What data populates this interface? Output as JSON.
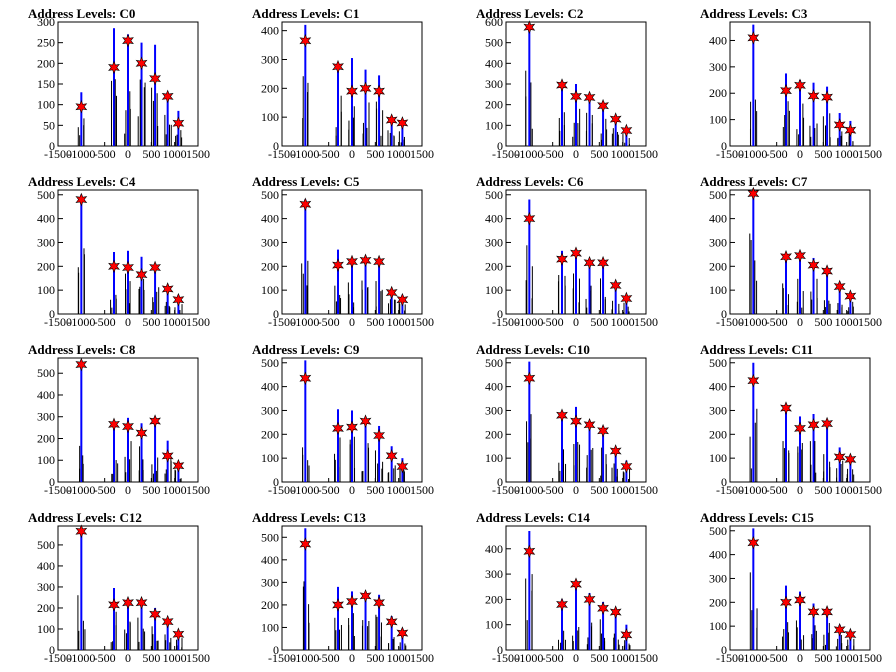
{
  "colors": {
    "histogram": "#0000ff",
    "marker": "#ff0000",
    "marker_outline": "#000000",
    "axis": "#000000"
  },
  "x_ticks": [
    -1500,
    -1000,
    -500,
    0,
    500,
    1000,
    1500
  ],
  "x_tick_labels": [
    "-1500",
    "-1000",
    "-500",
    "0",
    "500",
    "1000",
    "1500"
  ],
  "marker_icon": "red-star-marker",
  "chart_data": [
    {
      "type": "bar",
      "title": "Address Levels: C0",
      "xlim": [
        -1500,
        1500
      ],
      "ylim": [
        0,
        300
      ],
      "yticks": [
        0,
        50,
        100,
        150,
        200,
        250,
        300
      ],
      "peaks": [
        {
          "x": -1000,
          "h": 130
        },
        {
          "x": -300,
          "h": 285
        },
        {
          "x": 0,
          "h": 270
        },
        {
          "x": 290,
          "h": 250
        },
        {
          "x": 580,
          "h": 245
        },
        {
          "x": 850,
          "h": 125
        },
        {
          "x": 1080,
          "h": 85
        }
      ],
      "markers": [
        {
          "x": -1000,
          "y": 95
        },
        {
          "x": -300,
          "y": 190
        },
        {
          "x": 0,
          "y": 255
        },
        {
          "x": 290,
          "y": 200
        },
        {
          "x": 580,
          "y": 163
        },
        {
          "x": 850,
          "y": 120
        },
        {
          "x": 1080,
          "y": 55
        }
      ]
    },
    {
      "type": "bar",
      "title": "Address Levels: C1",
      "xlim": [
        -1500,
        1500
      ],
      "ylim": [
        0,
        430
      ],
      "yticks": [
        0,
        100,
        200,
        300,
        400
      ],
      "peaks": [
        {
          "x": -1000,
          "h": 420
        },
        {
          "x": -300,
          "h": 290
        },
        {
          "x": 0,
          "h": 305
        },
        {
          "x": 290,
          "h": 265
        },
        {
          "x": 580,
          "h": 245
        },
        {
          "x": 850,
          "h": 100
        },
        {
          "x": 1080,
          "h": 85
        }
      ],
      "markers": [
        {
          "x": -1000,
          "y": 365
        },
        {
          "x": -300,
          "y": 275
        },
        {
          "x": 0,
          "y": 190
        },
        {
          "x": 290,
          "y": 200
        },
        {
          "x": 580,
          "y": 190
        },
        {
          "x": 850,
          "y": 90
        },
        {
          "x": 1080,
          "y": 80
        }
      ]
    },
    {
      "type": "bar",
      "title": "Address Levels: C2",
      "xlim": [
        -1500,
        1500
      ],
      "ylim": [
        0,
        600
      ],
      "yticks": [
        0,
        100,
        200,
        300,
        400,
        500,
        600
      ],
      "peaks": [
        {
          "x": -1000,
          "h": 580
        },
        {
          "x": -300,
          "h": 300
        },
        {
          "x": 0,
          "h": 300
        },
        {
          "x": 290,
          "h": 250
        },
        {
          "x": 580,
          "h": 210
        },
        {
          "x": 850,
          "h": 140
        },
        {
          "x": 1080,
          "h": 90
        }
      ],
      "markers": [
        {
          "x": -1000,
          "y": 575
        },
        {
          "x": -300,
          "y": 295
        },
        {
          "x": 0,
          "y": 240
        },
        {
          "x": 290,
          "y": 235
        },
        {
          "x": 580,
          "y": 195
        },
        {
          "x": 850,
          "y": 130
        },
        {
          "x": 1080,
          "y": 75
        }
      ]
    },
    {
      "type": "bar",
      "title": "Address Levels: C3",
      "xlim": [
        -1500,
        1500
      ],
      "ylim": [
        0,
        470
      ],
      "yticks": [
        0,
        100,
        200,
        300,
        400
      ],
      "peaks": [
        {
          "x": -1000,
          "h": 460
        },
        {
          "x": -300,
          "h": 275
        },
        {
          "x": 0,
          "h": 250
        },
        {
          "x": 290,
          "h": 240
        },
        {
          "x": 580,
          "h": 225
        },
        {
          "x": 850,
          "h": 125
        },
        {
          "x": 1080,
          "h": 95
        }
      ],
      "markers": [
        {
          "x": -1000,
          "y": 410
        },
        {
          "x": -300,
          "y": 210
        },
        {
          "x": 0,
          "y": 230
        },
        {
          "x": 290,
          "y": 190
        },
        {
          "x": 580,
          "y": 185
        },
        {
          "x": 850,
          "y": 80
        },
        {
          "x": 1080,
          "y": 60
        }
      ]
    },
    {
      "type": "bar",
      "title": "Address Levels: C4",
      "xlim": [
        -1500,
        1500
      ],
      "ylim": [
        0,
        520
      ],
      "yticks": [
        0,
        100,
        200,
        300,
        400,
        500
      ],
      "peaks": [
        {
          "x": -1000,
          "h": 500
        },
        {
          "x": -300,
          "h": 260
        },
        {
          "x": 0,
          "h": 265
        },
        {
          "x": 290,
          "h": 240
        },
        {
          "x": 580,
          "h": 200
        },
        {
          "x": 850,
          "h": 115
        },
        {
          "x": 1080,
          "h": 80
        }
      ],
      "markers": [
        {
          "x": -1000,
          "y": 480
        },
        {
          "x": -300,
          "y": 200
        },
        {
          "x": 0,
          "y": 195
        },
        {
          "x": 290,
          "y": 165
        },
        {
          "x": 580,
          "y": 195
        },
        {
          "x": 850,
          "y": 105
        },
        {
          "x": 1080,
          "y": 60
        }
      ]
    },
    {
      "type": "bar",
      "title": "Address Levels: C5",
      "xlim": [
        -1500,
        1500
      ],
      "ylim": [
        0,
        520
      ],
      "yticks": [
        0,
        100,
        200,
        300,
        400,
        500
      ],
      "peaks": [
        {
          "x": -1000,
          "h": 480
        },
        {
          "x": -300,
          "h": 270
        },
        {
          "x": 0,
          "h": 235
        },
        {
          "x": 290,
          "h": 240
        },
        {
          "x": 580,
          "h": 230
        },
        {
          "x": 850,
          "h": 100
        },
        {
          "x": 1080,
          "h": 80
        }
      ],
      "markers": [
        {
          "x": -1000,
          "y": 460
        },
        {
          "x": -300,
          "y": 205
        },
        {
          "x": 0,
          "y": 220
        },
        {
          "x": 290,
          "y": 225
        },
        {
          "x": 580,
          "y": 220
        },
        {
          "x": 850,
          "y": 90
        },
        {
          "x": 1080,
          "y": 60
        }
      ]
    },
    {
      "type": "bar",
      "title": "Address Levels: C6",
      "xlim": [
        -1500,
        1500
      ],
      "ylim": [
        0,
        520
      ],
      "yticks": [
        0,
        100,
        200,
        300,
        400,
        500
      ],
      "peaks": [
        {
          "x": -1000,
          "h": 480
        },
        {
          "x": -300,
          "h": 265
        },
        {
          "x": 0,
          "h": 270
        },
        {
          "x": 290,
          "h": 230
        },
        {
          "x": 580,
          "h": 230
        },
        {
          "x": 850,
          "h": 130
        },
        {
          "x": 1080,
          "h": 80
        }
      ],
      "markers": [
        {
          "x": -1000,
          "y": 400
        },
        {
          "x": -300,
          "y": 230
        },
        {
          "x": 0,
          "y": 255
        },
        {
          "x": 290,
          "y": 215
        },
        {
          "x": 580,
          "y": 215
        },
        {
          "x": 850,
          "y": 120
        },
        {
          "x": 1080,
          "y": 65
        }
      ]
    },
    {
      "type": "bar",
      "title": "Address Levels: C7",
      "xlim": [
        -1500,
        1500
      ],
      "ylim": [
        0,
        520
      ],
      "yticks": [
        0,
        100,
        200,
        300,
        400,
        500
      ],
      "peaks": [
        {
          "x": -1000,
          "h": 520
        },
        {
          "x": -300,
          "h": 255
        },
        {
          "x": 0,
          "h": 250
        },
        {
          "x": 290,
          "h": 235
        },
        {
          "x": 580,
          "h": 195
        },
        {
          "x": 850,
          "h": 125
        },
        {
          "x": 1080,
          "h": 80
        }
      ],
      "markers": [
        {
          "x": -1000,
          "y": 505
        },
        {
          "x": -300,
          "y": 240
        },
        {
          "x": 0,
          "y": 245
        },
        {
          "x": 290,
          "y": 205
        },
        {
          "x": 580,
          "y": 180
        },
        {
          "x": 850,
          "y": 115
        },
        {
          "x": 1080,
          "y": 75
        }
      ]
    },
    {
      "type": "bar",
      "title": "Address Levels: C8",
      "xlim": [
        -1500,
        1500
      ],
      "ylim": [
        0,
        570
      ],
      "yticks": [
        0,
        100,
        200,
        300,
        400,
        500
      ],
      "peaks": [
        {
          "x": -1000,
          "h": 560
        },
        {
          "x": -300,
          "h": 275
        },
        {
          "x": 0,
          "h": 295
        },
        {
          "x": 290,
          "h": 270
        },
        {
          "x": 580,
          "h": 285
        },
        {
          "x": 850,
          "h": 190
        },
        {
          "x": 1080,
          "h": 90
        }
      ],
      "markers": [
        {
          "x": -1000,
          "y": 540
        },
        {
          "x": -300,
          "y": 265
        },
        {
          "x": 0,
          "y": 255
        },
        {
          "x": 290,
          "y": 225
        },
        {
          "x": 580,
          "y": 280
        },
        {
          "x": 850,
          "y": 120
        },
        {
          "x": 1080,
          "y": 75
        }
      ]
    },
    {
      "type": "bar",
      "title": "Address Levels: C9",
      "xlim": [
        -1500,
        1500
      ],
      "ylim": [
        0,
        520
      ],
      "yticks": [
        0,
        100,
        200,
        300,
        400,
        500
      ],
      "peaks": [
        {
          "x": -1000,
          "h": 510
        },
        {
          "x": -300,
          "h": 305
        },
        {
          "x": 0,
          "h": 300
        },
        {
          "x": 290,
          "h": 265
        },
        {
          "x": 580,
          "h": 235
        },
        {
          "x": 850,
          "h": 150
        },
        {
          "x": 1080,
          "h": 100
        }
      ],
      "markers": [
        {
          "x": -1000,
          "y": 435
        },
        {
          "x": -300,
          "y": 225
        },
        {
          "x": 0,
          "y": 230
        },
        {
          "x": 290,
          "y": 255
        },
        {
          "x": 580,
          "y": 195
        },
        {
          "x": 850,
          "y": 110
        },
        {
          "x": 1080,
          "y": 65
        }
      ]
    },
    {
      "type": "bar",
      "title": "Address Levels: C10",
      "xlim": [
        -1500,
        1500
      ],
      "ylim": [
        0,
        520
      ],
      "yticks": [
        0,
        100,
        200,
        300,
        400,
        500
      ],
      "peaks": [
        {
          "x": -1000,
          "h": 505
        },
        {
          "x": -300,
          "h": 295
        },
        {
          "x": 0,
          "h": 315
        },
        {
          "x": 290,
          "h": 255
        },
        {
          "x": 580,
          "h": 235
        },
        {
          "x": 850,
          "h": 145
        },
        {
          "x": 1080,
          "h": 90
        }
      ],
      "markers": [
        {
          "x": -1000,
          "y": 435
        },
        {
          "x": -300,
          "y": 280
        },
        {
          "x": 0,
          "y": 255
        },
        {
          "x": 290,
          "y": 240
        },
        {
          "x": 580,
          "y": 215
        },
        {
          "x": 850,
          "y": 130
        },
        {
          "x": 1080,
          "y": 65
        }
      ]
    },
    {
      "type": "bar",
      "title": "Address Levels: C11",
      "xlim": [
        -1500,
        1500
      ],
      "ylim": [
        0,
        520
      ],
      "yticks": [
        0,
        100,
        200,
        300,
        400,
        500
      ],
      "peaks": [
        {
          "x": -1000,
          "h": 500
        },
        {
          "x": -300,
          "h": 320
        },
        {
          "x": 0,
          "h": 275
        },
        {
          "x": 290,
          "h": 285
        },
        {
          "x": 580,
          "h": 260
        },
        {
          "x": 850,
          "h": 145
        },
        {
          "x": 1080,
          "h": 100
        }
      ],
      "markers": [
        {
          "x": -1000,
          "y": 425
        },
        {
          "x": -300,
          "y": 310
        },
        {
          "x": 0,
          "y": 225
        },
        {
          "x": 290,
          "y": 240
        },
        {
          "x": 580,
          "y": 245
        },
        {
          "x": 850,
          "y": 105
        },
        {
          "x": 1080,
          "y": 95
        }
      ]
    },
    {
      "type": "bar",
      "title": "Address Levels: C12",
      "xlim": [
        -1500,
        1500
      ],
      "ylim": [
        0,
        590
      ],
      "yticks": [
        0,
        100,
        200,
        300,
        400,
        500
      ],
      "peaks": [
        {
          "x": -1000,
          "h": 580
        },
        {
          "x": -300,
          "h": 295
        },
        {
          "x": 0,
          "h": 245
        },
        {
          "x": 290,
          "h": 240
        },
        {
          "x": 580,
          "h": 200
        },
        {
          "x": 850,
          "h": 145
        },
        {
          "x": 1080,
          "h": 90
        }
      ],
      "markers": [
        {
          "x": -1000,
          "y": 565
        },
        {
          "x": -300,
          "y": 215
        },
        {
          "x": 0,
          "y": 225
        },
        {
          "x": 290,
          "y": 225
        },
        {
          "x": 580,
          "y": 170
        },
        {
          "x": 850,
          "y": 135
        },
        {
          "x": 1080,
          "y": 75
        }
      ]
    },
    {
      "type": "bar",
      "title": "Address Levels: C13",
      "xlim": [
        -1500,
        1500
      ],
      "ylim": [
        0,
        550
      ],
      "yticks": [
        0,
        100,
        200,
        300,
        400,
        500
      ],
      "peaks": [
        {
          "x": -1000,
          "h": 540
        },
        {
          "x": -300,
          "h": 280
        },
        {
          "x": 0,
          "h": 260
        },
        {
          "x": 290,
          "h": 255
        },
        {
          "x": 580,
          "h": 245
        },
        {
          "x": 850,
          "h": 150
        },
        {
          "x": 1080,
          "h": 95
        }
      ],
      "markers": [
        {
          "x": -1000,
          "y": 470
        },
        {
          "x": -300,
          "y": 200
        },
        {
          "x": 0,
          "y": 215
        },
        {
          "x": 290,
          "y": 240
        },
        {
          "x": 580,
          "y": 210
        },
        {
          "x": 850,
          "y": 125
        },
        {
          "x": 1080,
          "y": 75
        }
      ]
    },
    {
      "type": "bar",
      "title": "Address Levels: C14",
      "xlim": [
        -1500,
        1500
      ],
      "ylim": [
        0,
        490
      ],
      "yticks": [
        0,
        100,
        200,
        300,
        400
      ],
      "peaks": [
        {
          "x": -1000,
          "h": 470
        },
        {
          "x": -300,
          "h": 200
        },
        {
          "x": 0,
          "h": 255
        },
        {
          "x": 290,
          "h": 225
        },
        {
          "x": 580,
          "h": 190
        },
        {
          "x": 850,
          "h": 150
        },
        {
          "x": 1080,
          "h": 100
        }
      ],
      "markers": [
        {
          "x": -1000,
          "y": 390
        },
        {
          "x": -300,
          "y": 180
        },
        {
          "x": 0,
          "y": 260
        },
        {
          "x": 290,
          "y": 200
        },
        {
          "x": 580,
          "y": 165
        },
        {
          "x": 850,
          "y": 150
        },
        {
          "x": 1080,
          "y": 60
        }
      ]
    },
    {
      "type": "bar",
      "title": "Address Levels: C15",
      "xlim": [
        -1500,
        1500
      ],
      "ylim": [
        0,
        520
      ],
      "yticks": [
        0,
        100,
        200,
        300,
        400,
        500
      ],
      "peaks": [
        {
          "x": -1000,
          "h": 510
        },
        {
          "x": -300,
          "h": 270
        },
        {
          "x": 0,
          "h": 245
        },
        {
          "x": 290,
          "h": 195
        },
        {
          "x": 580,
          "h": 175
        },
        {
          "x": 850,
          "h": 105
        },
        {
          "x": 1080,
          "h": 80
        }
      ],
      "markers": [
        {
          "x": -1000,
          "y": 450
        },
        {
          "x": -300,
          "y": 200
        },
        {
          "x": 0,
          "y": 210
        },
        {
          "x": 290,
          "y": 160
        },
        {
          "x": 580,
          "y": 160
        },
        {
          "x": 850,
          "y": 85
        },
        {
          "x": 1080,
          "y": 65
        }
      ]
    }
  ]
}
